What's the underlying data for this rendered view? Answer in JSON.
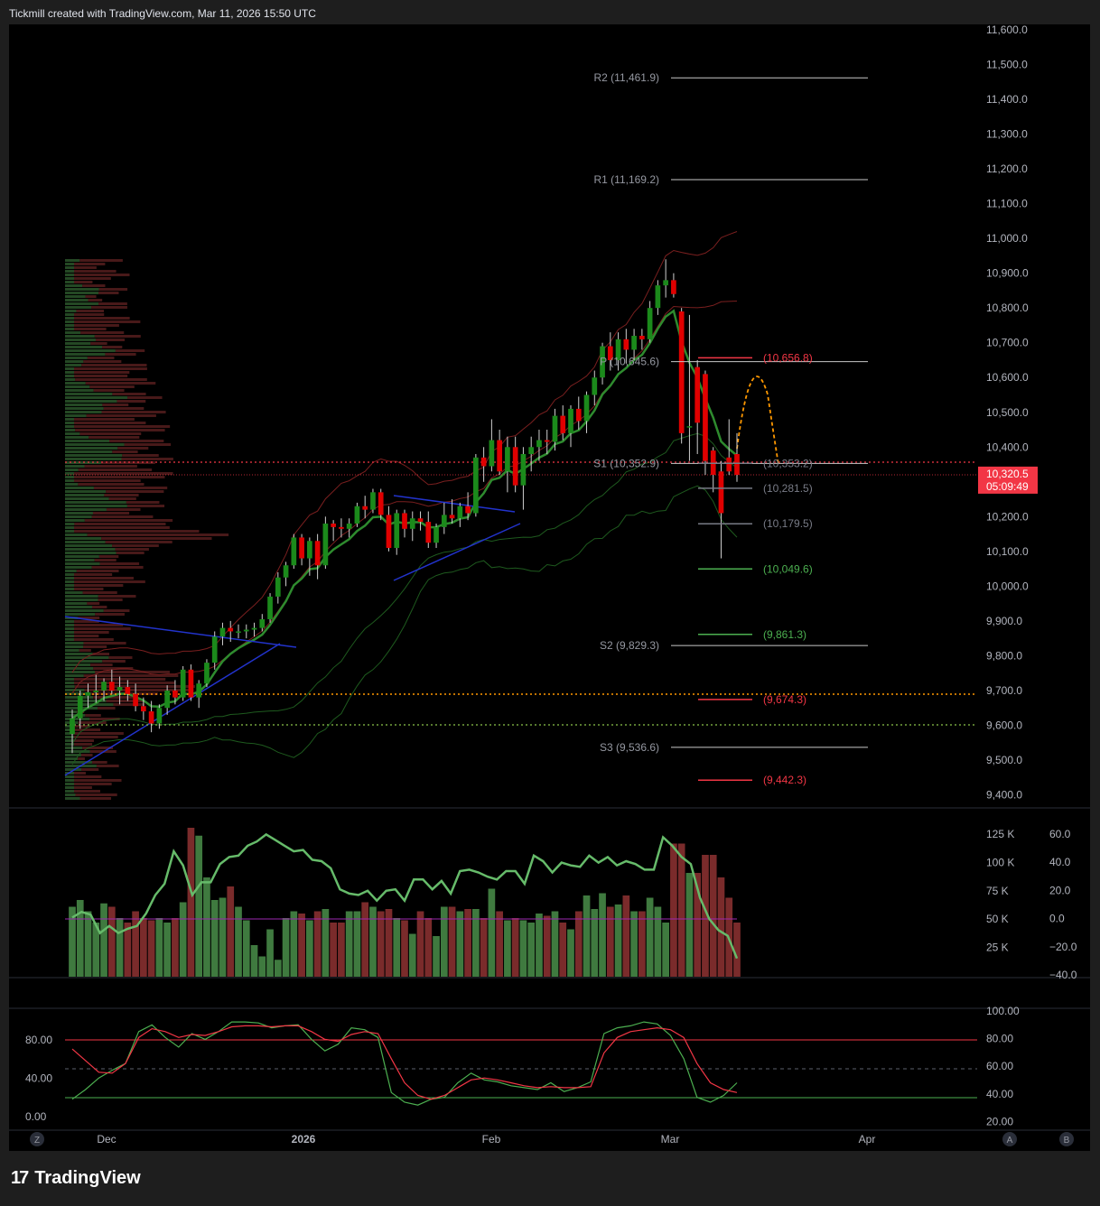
{
  "header": {
    "title": "Tickmill created with TradingView.com, Mar 11, 2026 15:50 UTC"
  },
  "brand": {
    "logo_glyph": "17",
    "name": "TradingView"
  },
  "price_axis": {
    "labels": [
      "11,600.0",
      "11,500.0",
      "11,400.0",
      "11,300.0",
      "11,200.0",
      "11,100.0",
      "11,000.0",
      "10,900.0",
      "10,800.0",
      "10,700.0",
      "10,600.0",
      "10,500.0",
      "10,400.0",
      "10,300.0",
      "10,200.0",
      "10,100.0",
      "10,000.0",
      "9,900.0",
      "9,800.0",
      "9,700.0",
      "9,600.0",
      "9,500.0",
      "9,400.0"
    ]
  },
  "last_price": {
    "value": "10,320.5",
    "countdown": "05:09:49",
    "color": "#f23645"
  },
  "pivot_labels": [
    {
      "text": "R2 (11,461.9)",
      "price": 11461.9
    },
    {
      "text": "R1 (11,169.2)",
      "price": 11169.2
    },
    {
      "text": "P (10,645.6)",
      "price": 10645.6
    },
    {
      "text": "S1 (10,352.9)",
      "price": 10352.9
    },
    {
      "text": "S2 (9,829.3)",
      "price": 9829.3
    },
    {
      "text": "S3 (9,536.6)",
      "price": 9536.6
    }
  ],
  "level_labels": [
    {
      "text": "(10,656.8)",
      "price": 10656.8,
      "color": "#f23645"
    },
    {
      "text": "(10,353.2)",
      "price": 10353.2,
      "color": "#787b86"
    },
    {
      "text": "(10,281.5)",
      "price": 10281.5,
      "color": "#787b86"
    },
    {
      "text": "(10,179.5)",
      "price": 10179.5,
      "color": "#787b86"
    },
    {
      "text": "(10,049.6)",
      "price": 10049.6,
      "color": "#4caf50"
    },
    {
      "text": "(9,861.3)",
      "price": 9861.3,
      "color": "#4caf50"
    },
    {
      "text": "(9,674.3)",
      "price": 9674.3,
      "color": "#f23645"
    },
    {
      "text": "(9,442.3)",
      "price": 9442.3,
      "color": "#f23645"
    }
  ],
  "volume_axis": {
    "labels": [
      "125 K",
      "100 K",
      "75 K",
      "50 K",
      "25 K"
    ]
  },
  "momentum_axis": {
    "labels": [
      "60.0",
      "40.0",
      "20.0",
      "0.0",
      "−20.0",
      "−40.0"
    ]
  },
  "oscillator_left_axis": {
    "labels": [
      "80.00",
      "40.00",
      "0.00"
    ]
  },
  "oscillator_right_axis": {
    "labels": [
      "100.00",
      "80.00",
      "60.00",
      "40.00",
      "20.00"
    ]
  },
  "time_axis": {
    "labels": [
      "Dec",
      "2026",
      "Feb",
      "Mar",
      "Apr"
    ]
  },
  "corner_buttons": {
    "left": "Z",
    "a": "A",
    "b": "B"
  },
  "colors": {
    "up": "#1b8a1b",
    "down": "#e00000",
    "vol_up": "#3f7a3f",
    "vol_down": "#7a2b2b",
    "pivot": "#c8c8c8",
    "band": "#7a1f1f",
    "green_band": "#1e5a1e"
  },
  "chart_data": {
    "type": "candlestick",
    "symbol_frequency": "daily",
    "y_range": [
      9380,
      11620
    ],
    "candles": [
      [
        9575,
        9645,
        9520,
        9620
      ],
      [
        9620,
        9700,
        9590,
        9685
      ],
      [
        9685,
        9720,
        9650,
        9695
      ],
      [
        9695,
        9745,
        9665,
        9700
      ],
      [
        9700,
        9735,
        9670,
        9725
      ],
      [
        9725,
        9760,
        9690,
        9700
      ],
      [
        9700,
        9740,
        9660,
        9710
      ],
      [
        9710,
        9730,
        9670,
        9690
      ],
      [
        9690,
        9720,
        9640,
        9655
      ],
      [
        9655,
        9680,
        9615,
        9640
      ],
      [
        9640,
        9670,
        9580,
        9605
      ],
      [
        9605,
        9660,
        9590,
        9650
      ],
      [
        9650,
        9715,
        9630,
        9700
      ],
      [
        9700,
        9730,
        9660,
        9680
      ],
      [
        9680,
        9770,
        9670,
        9760
      ],
      [
        9760,
        9775,
        9670,
        9680
      ],
      [
        9680,
        9730,
        9650,
        9720
      ],
      [
        9720,
        9790,
        9710,
        9780
      ],
      [
        9780,
        9870,
        9760,
        9855
      ],
      [
        9855,
        9895,
        9830,
        9880
      ],
      [
        9880,
        9900,
        9840,
        9870
      ],
      [
        9870,
        9890,
        9850,
        9870
      ],
      [
        9870,
        9890,
        9850,
        9875
      ],
      [
        9875,
        9895,
        9855,
        9880
      ],
      [
        9880,
        9920,
        9870,
        9905
      ],
      [
        9905,
        9980,
        9895,
        9970
      ],
      [
        9970,
        10040,
        9950,
        10025
      ],
      [
        10025,
        10070,
        10000,
        10060
      ],
      [
        10060,
        10150,
        10050,
        10140
      ],
      [
        10140,
        10150,
        10060,
        10080
      ],
      [
        10080,
        10140,
        10030,
        10130
      ],
      [
        10130,
        10150,
        10020,
        10060
      ],
      [
        10060,
        10200,
        10050,
        10180
      ],
      [
        10180,
        10190,
        10130,
        10170
      ],
      [
        10170,
        10195,
        10140,
        10165
      ],
      [
        10165,
        10195,
        10140,
        10180
      ],
      [
        10180,
        10240,
        10170,
        10230
      ],
      [
        10230,
        10260,
        10195,
        10220
      ],
      [
        10220,
        10280,
        10210,
        10270
      ],
      [
        10270,
        10280,
        10190,
        10205
      ],
      [
        10205,
        10230,
        10100,
        10110
      ],
      [
        10110,
        10220,
        10090,
        10210
      ],
      [
        10210,
        10220,
        10140,
        10165
      ],
      [
        10165,
        10215,
        10130,
        10195
      ],
      [
        10195,
        10215,
        10160,
        10185
      ],
      [
        10185,
        10215,
        10110,
        10125
      ],
      [
        10125,
        10180,
        10110,
        10170
      ],
      [
        10170,
        10240,
        10150,
        10205
      ],
      [
        10205,
        10250,
        10180,
        10195
      ],
      [
        10195,
        10240,
        10170,
        10230
      ],
      [
        10230,
        10270,
        10190,
        10210
      ],
      [
        10210,
        10380,
        10200,
        10370
      ],
      [
        10370,
        10400,
        10300,
        10345
      ],
      [
        10345,
        10480,
        10330,
        10420
      ],
      [
        10420,
        10450,
        10320,
        10330
      ],
      [
        10330,
        10430,
        10270,
        10400
      ],
      [
        10400,
        10430,
        10270,
        10290
      ],
      [
        10290,
        10400,
        10220,
        10380
      ],
      [
        10380,
        10430,
        10330,
        10400
      ],
      [
        10400,
        10450,
        10360,
        10420
      ],
      [
        10420,
        10450,
        10380,
        10415
      ],
      [
        10415,
        10510,
        10390,
        10490
      ],
      [
        10490,
        10520,
        10420,
        10440
      ],
      [
        10440,
        10520,
        10400,
        10510
      ],
      [
        10510,
        10545,
        10450,
        10475
      ],
      [
        10475,
        10560,
        10440,
        10550
      ],
      [
        10550,
        10620,
        10520,
        10600
      ],
      [
        10600,
        10700,
        10580,
        10690
      ],
      [
        10690,
        10730,
        10620,
        10650
      ],
      [
        10650,
        10730,
        10620,
        10710
      ],
      [
        10710,
        10740,
        10640,
        10680
      ],
      [
        10680,
        10740,
        10650,
        10720
      ],
      [
        10720,
        10740,
        10680,
        10710
      ],
      [
        10710,
        10820,
        10700,
        10800
      ],
      [
        10800,
        10880,
        10780,
        10865
      ],
      [
        10865,
        10940,
        10830,
        10880
      ],
      [
        10880,
        10900,
        10830,
        10840
      ],
      [
        10790,
        10800,
        10410,
        10440
      ],
      [
        10460,
        10780,
        10360,
        10460
      ],
      [
        10630,
        10650,
        10380,
        10470
      ],
      [
        10610,
        10620,
        10320,
        10360
      ],
      [
        10390,
        10400,
        10270,
        10320
      ],
      [
        10330,
        10360,
        10080,
        10210
      ],
      [
        10370,
        10480,
        10320,
        10330
      ],
      [
        10380,
        10440,
        10300,
        10320
      ]
    ],
    "volume": [
      62,
      68,
      58,
      48,
      65,
      62,
      52,
      48,
      58,
      52,
      50,
      52,
      48,
      52,
      66,
      132,
      125,
      88,
      68,
      70,
      80,
      62,
      50,
      28,
      18,
      42,
      15,
      52,
      58,
      56,
      50,
      58,
      60,
      48,
      48,
      58,
      58,
      66,
      62,
      58,
      60,
      52,
      50,
      38,
      58,
      52,
      36,
      62,
      62,
      58,
      60,
      60,
      52,
      78,
      58,
      50,
      52,
      50,
      48,
      56,
      54,
      58,
      48,
      42,
      58,
      72,
      60,
      74,
      62,
      64,
      72,
      58,
      58,
      70,
      62,
      48,
      118,
      118,
      92,
      92,
      108,
      108,
      88,
      70,
      48
    ],
    "momentum": [
      1,
      5,
      3,
      -10,
      -5,
      -10,
      -7,
      -5,
      4,
      17,
      25,
      48,
      38,
      17,
      26,
      26,
      39,
      44,
      45,
      52,
      55,
      60,
      56,
      52,
      48,
      49,
      42,
      41,
      36,
      21,
      18,
      17,
      20,
      13,
      20,
      21,
      13,
      28,
      28,
      21,
      27,
      18,
      34,
      35,
      33,
      30,
      28,
      34,
      34,
      25,
      45,
      41,
      33,
      40,
      38,
      37,
      45,
      40,
      44,
      38,
      41,
      39,
      35,
      35,
      58,
      52,
      44,
      39,
      15,
      0,
      -8,
      -12,
      -28
    ],
    "oscillator_k": [
      18,
      28,
      40,
      48,
      55,
      88,
      95,
      82,
      72,
      86,
      80,
      88,
      98,
      98,
      97,
      92,
      94,
      95,
      80,
      68,
      75,
      92,
      90,
      82,
      25,
      15,
      12,
      18,
      20,
      35,
      45,
      38,
      36,
      32,
      30,
      28,
      35,
      26,
      30,
      36,
      86,
      92,
      94,
      98,
      96,
      84,
      60,
      20,
      15,
      22,
      35
    ],
    "oscillator_d": [
      70,
      58,
      46,
      45,
      55,
      82,
      91,
      88,
      82,
      85,
      84,
      88,
      93,
      94,
      94,
      93,
      94,
      94,
      88,
      80,
      78,
      85,
      88,
      86,
      60,
      35,
      22,
      18,
      22,
      30,
      38,
      40,
      38,
      35,
      32,
      30,
      31,
      30,
      30,
      31,
      66,
      82,
      88,
      90,
      92,
      90,
      82,
      55,
      35,
      28,
      25
    ],
    "pivots": {
      "R2": 11461.9,
      "R1": 11169.2,
      "P": 10645.6,
      "S1": 10352.9,
      "S2": 9829.3,
      "S3": 9536.6
    }
  }
}
